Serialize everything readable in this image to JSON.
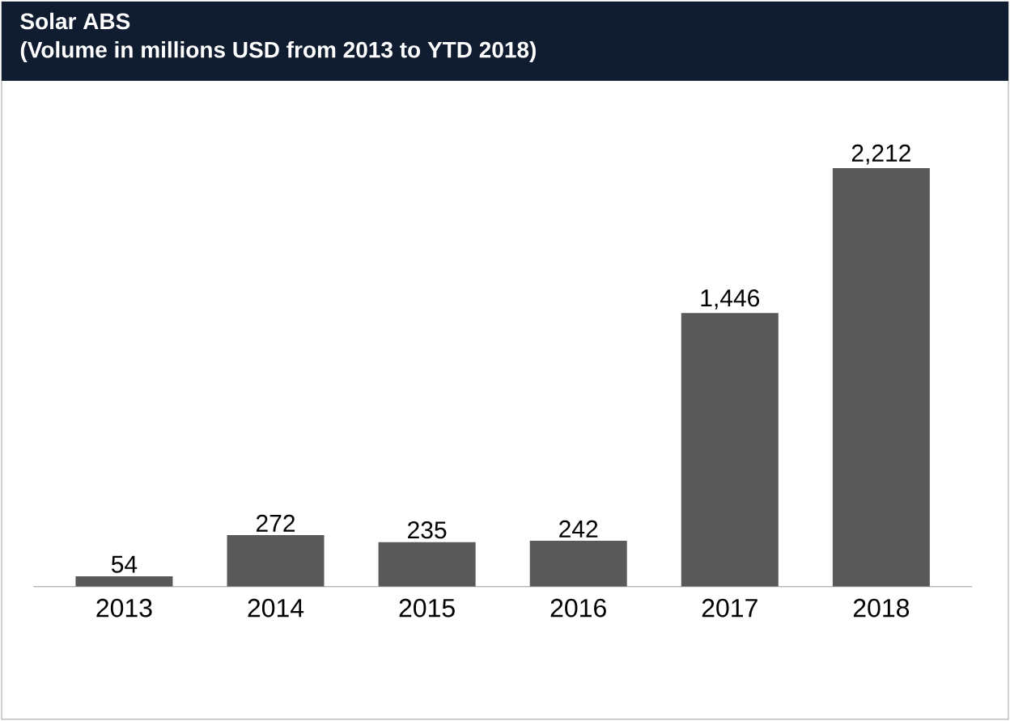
{
  "chart_data": {
    "type": "bar",
    "title": "Solar ABS",
    "subtitle": "(Volume in millions USD from 2013 to YTD 2018)",
    "categories": [
      "2013",
      "2014",
      "2015",
      "2016",
      "2017",
      "2018"
    ],
    "values": [
      54,
      272,
      235,
      242,
      1446,
      2212
    ],
    "color": "#595959",
    "value_labels": [
      "54",
      "272",
      "235",
      "242",
      "1,446",
      "2,212"
    ]
  }
}
